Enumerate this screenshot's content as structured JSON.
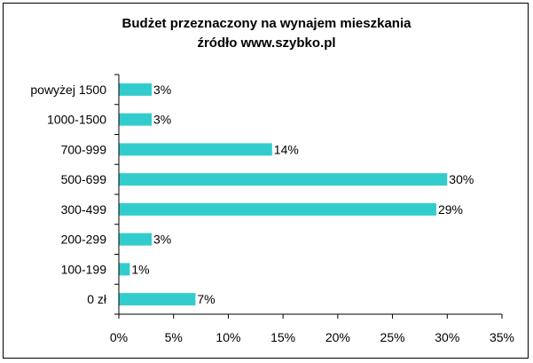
{
  "chart_data": {
    "type": "bar",
    "orientation": "horizontal",
    "title": "Budżet przeznaczony na wynajem mieszkania",
    "subtitle": "źródło www.szybko.pl",
    "categories": [
      "0 zł",
      "100-199",
      "200-299",
      "300-499",
      "500-699",
      "700-999",
      "1000-1500",
      "powyżej 1500"
    ],
    "values": [
      7,
      1,
      3,
      29,
      30,
      14,
      3,
      3
    ],
    "data_labels": [
      "7%",
      "1%",
      "3%",
      "29%",
      "30%",
      "14%",
      "3%",
      "3%"
    ],
    "xlim": [
      0,
      35
    ],
    "x_ticks": [
      0,
      5,
      10,
      15,
      20,
      25,
      30,
      35
    ],
    "x_tick_labels": [
      "0%",
      "5%",
      "10%",
      "15%",
      "20%",
      "25%",
      "30%",
      "35%"
    ],
    "xlabel": "",
    "ylabel": "",
    "grid": false,
    "legend": "none",
    "bar_color": "#33CCCC"
  }
}
